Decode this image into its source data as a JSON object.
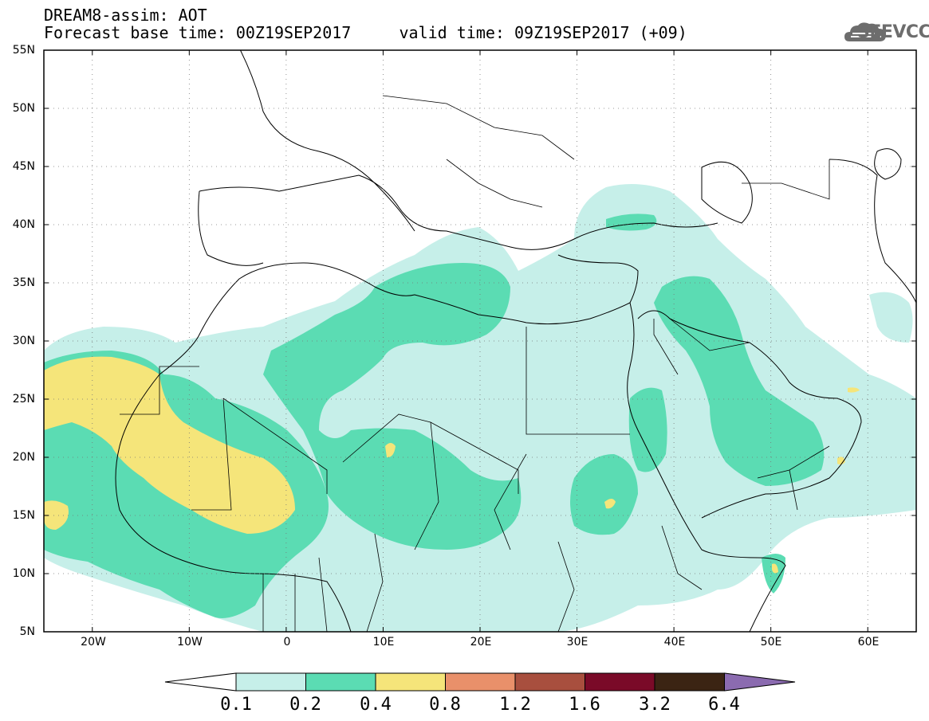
{
  "header": {
    "title_line1": "DREAM8-assim: AOT",
    "title_line2": "Forecast base time: 00Z19SEP2017     valid time: 09Z19SEP2017 (+09)"
  },
  "logo": {
    "text": "SEEVCCC",
    "icon": "cloud-icon"
  },
  "map": {
    "projection": "cylindrical-equidistant",
    "lon_range": [
      -25,
      65
    ],
    "lat_range": [
      5,
      55
    ],
    "lat_labels": [
      "55N",
      "50N",
      "45N",
      "40N",
      "35N",
      "30N",
      "25N",
      "20N",
      "15N",
      "10N",
      "5N"
    ],
    "lon_labels": [
      "20W",
      "10W",
      "0",
      "10E",
      "20E",
      "30E",
      "40E",
      "50E",
      "60E"
    ],
    "gridlines": "dotted"
  },
  "colorbar": {
    "labels": [
      "0.1",
      "0.2",
      "0.4",
      "0.8",
      "1.2",
      "1.6",
      "3.2",
      "6.4"
    ],
    "colors": [
      "#ffffff",
      "#c6efe9",
      "#5bdcb3",
      "#f5e57a",
      "#e9906a",
      "#a84f3e",
      "#7a0a28",
      "#3b2413",
      "#8b6bb0"
    ]
  }
}
